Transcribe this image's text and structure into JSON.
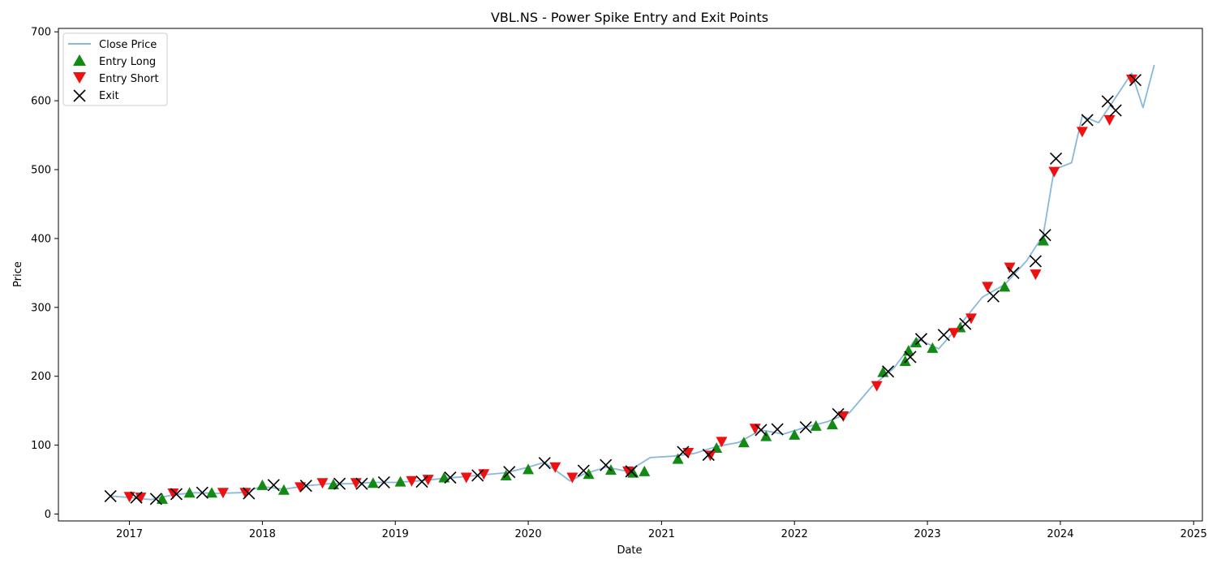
{
  "chart_data": {
    "type": "line",
    "title": "VBL.NS - Power Spike Entry and Exit Points",
    "xlabel": "Date",
    "ylabel": "Price",
    "x_axis_type": "date",
    "xlim": [
      "2016-06-20",
      "2025-01-25"
    ],
    "ylim": [
      -10,
      705
    ],
    "x_ticks": [
      "2017",
      "2018",
      "2019",
      "2020",
      "2021",
      "2022",
      "2023",
      "2024",
      "2025"
    ],
    "y_ticks": [
      0,
      100,
      200,
      300,
      400,
      500,
      600,
      700
    ],
    "grid": false,
    "legend_position": "top-left",
    "colors": {
      "close": "#8ab8da",
      "entry_long": "#138a13",
      "entry_short": "#ee1111",
      "exit": "#000000"
    },
    "legend": [
      {
        "label": "Close Price",
        "kind": "line"
      },
      {
        "label": "Entry Long",
        "kind": "triangle-up"
      },
      {
        "label": "Entry Short",
        "kind": "triangle-down"
      },
      {
        "label": "Exit",
        "kind": "x"
      }
    ],
    "series": [
      {
        "name": "Close Price",
        "points": [
          [
            "2016-11-10",
            26
          ],
          [
            "2017-01-01",
            24
          ],
          [
            "2017-03-01",
            21
          ],
          [
            "2017-05-01",
            28
          ],
          [
            "2017-07-01",
            31
          ],
          [
            "2017-09-01",
            30
          ],
          [
            "2017-11-01",
            31
          ],
          [
            "2018-01-01",
            40
          ],
          [
            "2018-03-01",
            36
          ],
          [
            "2018-05-01",
            41
          ],
          [
            "2018-07-01",
            44
          ],
          [
            "2018-09-01",
            44
          ],
          [
            "2018-11-01",
            46
          ],
          [
            "2019-01-01",
            46
          ],
          [
            "2019-03-01",
            48
          ],
          [
            "2019-05-01",
            51
          ],
          [
            "2019-07-01",
            54
          ],
          [
            "2019-09-01",
            57
          ],
          [
            "2019-11-01",
            60
          ],
          [
            "2020-01-01",
            68
          ],
          [
            "2020-02-15",
            75
          ],
          [
            "2020-03-20",
            62
          ],
          [
            "2020-04-25",
            48
          ],
          [
            "2020-06-01",
            58
          ],
          [
            "2020-08-01",
            68
          ],
          [
            "2020-10-01",
            62
          ],
          [
            "2020-12-01",
            82
          ],
          [
            "2021-02-01",
            84
          ],
          [
            "2021-04-01",
            88
          ],
          [
            "2021-06-01",
            98
          ],
          [
            "2021-08-01",
            104
          ],
          [
            "2021-10-01",
            122
          ],
          [
            "2021-12-01",
            116
          ],
          [
            "2022-02-01",
            126
          ],
          [
            "2022-04-01",
            134
          ],
          [
            "2022-06-01",
            147
          ],
          [
            "2022-08-01",
            185
          ],
          [
            "2022-10-01",
            212
          ],
          [
            "2022-12-01",
            255
          ],
          [
            "2023-02-01",
            240
          ],
          [
            "2023-04-01",
            275
          ],
          [
            "2023-06-01",
            315
          ],
          [
            "2023-08-01",
            333
          ],
          [
            "2023-10-01",
            368
          ],
          [
            "2023-11-15",
            405
          ],
          [
            "2023-12-15",
            500
          ],
          [
            "2024-02-01",
            510
          ],
          [
            "2024-03-01",
            578
          ],
          [
            "2024-04-15",
            568
          ],
          [
            "2024-06-01",
            605
          ],
          [
            "2024-07-15",
            640
          ],
          [
            "2024-08-15",
            590
          ],
          [
            "2024-09-15",
            652
          ]
        ]
      },
      {
        "name": "Entry Long",
        "points": [
          [
            "2017-04-01",
            22
          ],
          [
            "2017-06-15",
            31
          ],
          [
            "2017-08-15",
            31
          ],
          [
            "2018-01-01",
            42
          ],
          [
            "2018-03-01",
            35
          ],
          [
            "2018-07-15",
            43
          ],
          [
            "2018-11-01",
            45
          ],
          [
            "2019-01-15",
            47
          ],
          [
            "2019-05-15",
            53
          ],
          [
            "2019-11-01",
            56
          ],
          [
            "2020-01-01",
            65
          ],
          [
            "2020-06-15",
            58
          ],
          [
            "2020-08-15",
            64
          ],
          [
            "2020-10-15",
            60
          ],
          [
            "2020-11-15",
            62
          ],
          [
            "2021-02-15",
            80
          ],
          [
            "2021-06-01",
            96
          ],
          [
            "2021-08-15",
            104
          ],
          [
            "2021-10-15",
            113
          ],
          [
            "2022-01-01",
            115
          ],
          [
            "2022-03-01",
            128
          ],
          [
            "2022-04-15",
            130
          ],
          [
            "2022-09-01",
            206
          ],
          [
            "2022-11-01",
            222
          ],
          [
            "2022-11-10",
            237
          ],
          [
            "2022-12-01",
            249
          ],
          [
            "2023-01-15",
            241
          ],
          [
            "2023-04-01",
            271
          ],
          [
            "2023-08-01",
            330
          ],
          [
            "2023-11-15",
            397
          ]
        ]
      },
      {
        "name": "Entry Short",
        "points": [
          [
            "2017-01-01",
            25
          ],
          [
            "2017-02-01",
            24
          ],
          [
            "2017-05-01",
            30
          ],
          [
            "2017-09-15",
            31
          ],
          [
            "2017-11-15",
            31
          ],
          [
            "2018-04-15",
            39
          ],
          [
            "2018-06-15",
            45
          ],
          [
            "2018-09-15",
            45
          ],
          [
            "2019-02-15",
            48
          ],
          [
            "2019-04-01",
            50
          ],
          [
            "2019-07-15",
            53
          ],
          [
            "2019-09-01",
            58
          ],
          [
            "2020-03-15",
            68
          ],
          [
            "2020-05-01",
            53
          ],
          [
            "2020-10-01",
            62
          ],
          [
            "2021-03-15",
            89
          ],
          [
            "2021-05-15",
            85
          ],
          [
            "2021-06-15",
            105
          ],
          [
            "2021-09-15",
            124
          ],
          [
            "2022-05-15",
            142
          ],
          [
            "2022-08-15",
            186
          ],
          [
            "2023-03-15",
            263
          ],
          [
            "2023-05-01",
            284
          ],
          [
            "2023-06-15",
            330
          ],
          [
            "2023-08-15",
            358
          ],
          [
            "2023-10-25",
            348
          ],
          [
            "2023-12-15",
            497
          ],
          [
            "2024-03-01",
            555
          ],
          [
            "2024-05-15",
            572
          ],
          [
            "2024-07-15",
            631
          ]
        ]
      },
      {
        "name": "Exit",
        "points": [
          [
            "2016-11-10",
            26
          ],
          [
            "2017-01-20",
            24
          ],
          [
            "2017-03-15",
            22
          ],
          [
            "2017-05-10",
            29
          ],
          [
            "2017-07-20",
            31
          ],
          [
            "2017-11-25",
            30
          ],
          [
            "2018-02-01",
            42
          ],
          [
            "2018-05-01",
            41
          ],
          [
            "2018-08-01",
            44
          ],
          [
            "2018-10-01",
            44
          ],
          [
            "2018-12-01",
            46
          ],
          [
            "2019-03-15",
            47
          ],
          [
            "2019-06-01",
            53
          ],
          [
            "2019-08-15",
            56
          ],
          [
            "2019-11-10",
            61
          ],
          [
            "2020-02-15",
            74
          ],
          [
            "2020-06-01",
            63
          ],
          [
            "2020-08-01",
            71
          ],
          [
            "2020-10-10",
            62
          ],
          [
            "2021-03-01",
            90
          ],
          [
            "2021-05-10",
            86
          ],
          [
            "2021-10-01",
            122
          ],
          [
            "2021-11-15",
            123
          ],
          [
            "2022-02-01",
            126
          ],
          [
            "2022-05-01",
            145
          ],
          [
            "2022-09-15",
            207
          ],
          [
            "2022-11-15",
            228
          ],
          [
            "2022-12-15",
            254
          ],
          [
            "2023-02-15",
            260
          ],
          [
            "2023-04-15",
            276
          ],
          [
            "2023-07-01",
            316
          ],
          [
            "2023-08-25",
            350
          ],
          [
            "2023-10-25",
            367
          ],
          [
            "2023-11-20",
            405
          ],
          [
            "2023-12-20",
            516
          ],
          [
            "2024-03-15",
            572
          ],
          [
            "2024-05-10",
            599
          ],
          [
            "2024-06-01",
            586
          ],
          [
            "2024-07-25",
            630
          ]
        ]
      }
    ]
  }
}
